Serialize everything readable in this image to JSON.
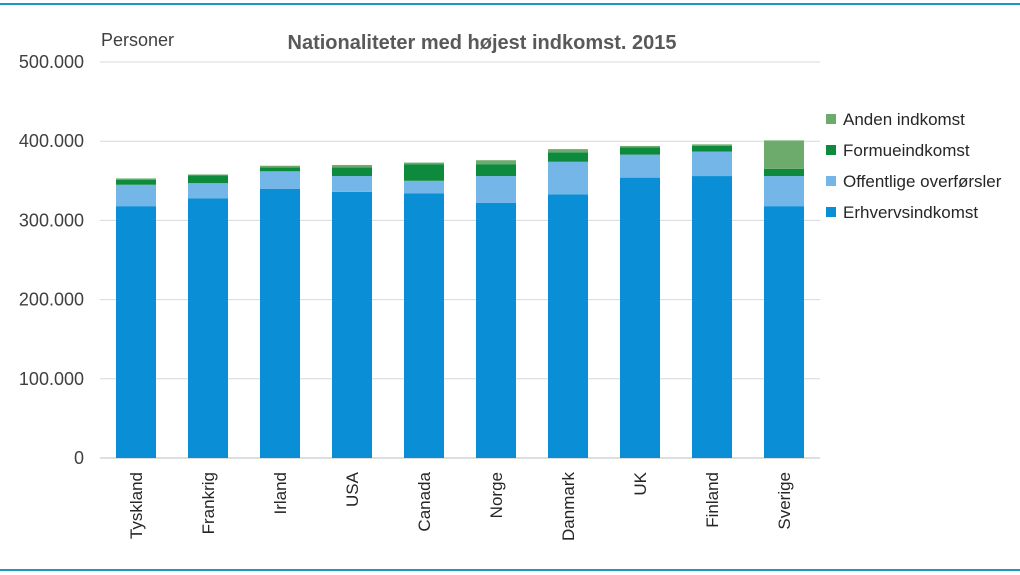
{
  "chart_data": {
    "type": "bar",
    "stacked": true,
    "title": "Nationaliteter med højest indkomst. 2015",
    "ylabel": "Personer",
    "ylim": [
      0,
      500000
    ],
    "yticks": [
      0,
      100000,
      200000,
      300000,
      400000,
      500000
    ],
    "ytick_labels": [
      "0",
      "100.000",
      "200.000",
      "300.000",
      "400.000",
      "500.000"
    ],
    "grid": true,
    "legend_position": "right",
    "categories": [
      "Tyskland",
      "Frankrig",
      "Irland",
      "USA",
      "Canada",
      "Norge",
      "Danmark",
      "UK",
      "Finland",
      "Sverige"
    ],
    "series": [
      {
        "name": "Erhvervsindkomst",
        "color": "#0a8fd6",
        "values": [
          318000,
          328000,
          340000,
          336000,
          334000,
          322000,
          333000,
          354000,
          356000,
          318000
        ]
      },
      {
        "name": "Offentlige overførsler",
        "color": "#74b6e8",
        "values": [
          27000,
          19000,
          22000,
          20000,
          16000,
          34000,
          41000,
          29000,
          31000,
          38000
        ]
      },
      {
        "name": "Formueindkomst",
        "color": "#0e8a3c",
        "values": [
          6000,
          10000,
          5000,
          11000,
          21000,
          15000,
          12000,
          9000,
          7000,
          9000
        ]
      },
      {
        "name": "Anden indkomst",
        "color": "#6dab6d",
        "values": [
          2000,
          1000,
          2000,
          3000,
          2000,
          5000,
          4000,
          2000,
          2000,
          36000
        ]
      }
    ]
  }
}
